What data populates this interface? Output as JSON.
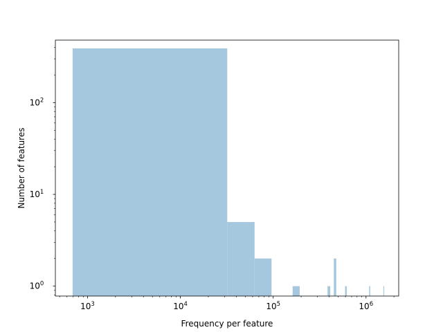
{
  "chart_data": {
    "type": "bar",
    "title": "",
    "xlabel": "Frequency per feature",
    "ylabel": "Number of features",
    "xscale": "log",
    "yscale": "log",
    "xlim": [
      450,
      2250000
    ],
    "ylim": [
      0.78,
      480
    ],
    "xticks": [
      {
        "base": "10",
        "exp": "3",
        "value": 1000
      },
      {
        "base": "10",
        "exp": "4",
        "value": 10000
      },
      {
        "base": "10",
        "exp": "5",
        "value": 100000
      },
      {
        "base": "10",
        "exp": "6",
        "value": 1000000
      }
    ],
    "yticks": [
      {
        "base": "10",
        "exp": "0",
        "value": 1
      },
      {
        "base": "10",
        "exp": "1",
        "value": 10
      },
      {
        "base": "10",
        "exp": "2",
        "value": 100
      }
    ],
    "bar_color": "#a6c8df",
    "grid": false,
    "bins": [
      {
        "x0": 690,
        "x1": 32000,
        "count": 390
      },
      {
        "x0": 32000,
        "x1": 63000,
        "count": 5
      },
      {
        "x0": 63000,
        "x1": 96000,
        "count": 2
      },
      {
        "x0": 162000,
        "x1": 193000,
        "count": 1
      },
      {
        "x0": 385000,
        "x1": 412000,
        "count": 1
      },
      {
        "x0": 450000,
        "x1": 478000,
        "count": 2
      },
      {
        "x0": 595000,
        "x1": 620000,
        "count": 1
      },
      {
        "x0": 1080000,
        "x1": 1110000,
        "count": 1
      },
      {
        "x0": 1540000,
        "x1": 1570000,
        "count": 1
      }
    ]
  }
}
